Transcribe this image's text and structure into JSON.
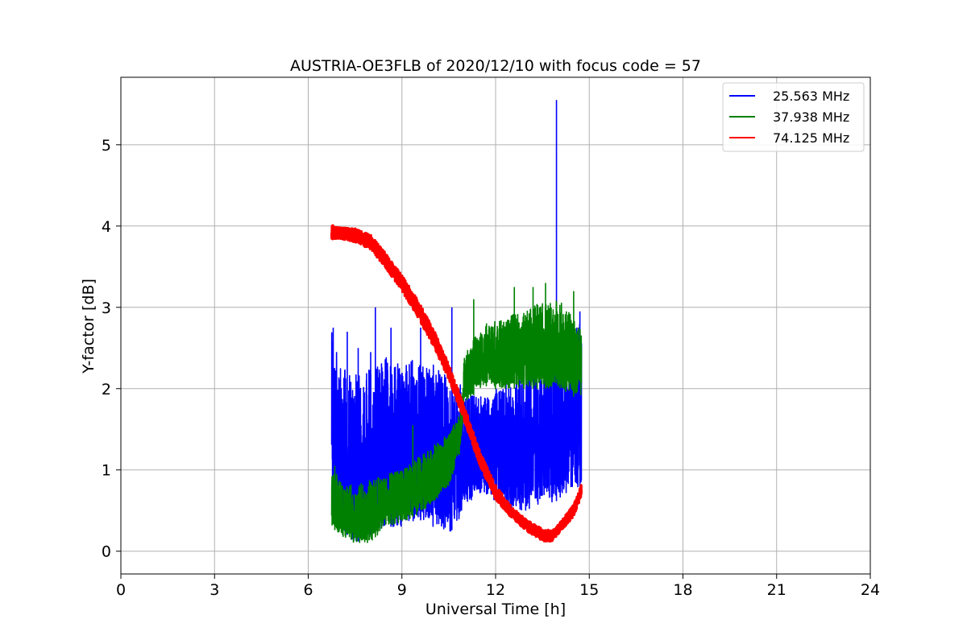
{
  "chart_data": {
    "type": "line",
    "title": "AUSTRIA-OE3FLB of 2020/12/10 with focus code = 57",
    "xlabel": "Universal Time [h]",
    "ylabel": "Y-factor [dB]",
    "xlim": [
      0,
      24
    ],
    "ylim": [
      -0.28,
      5.83
    ],
    "xticks": [
      0,
      3,
      6,
      9,
      12,
      15,
      18,
      21,
      24
    ],
    "yticks": [
      0,
      1,
      2,
      3,
      4,
      5
    ],
    "grid": true,
    "legend_position": "top-right",
    "series": [
      {
        "name": "25.563 MHz",
        "color": "#0000ff",
        "x": [
          6.75,
          7.0,
          7.5,
          8.0,
          8.5,
          9.0,
          9.5,
          10.0,
          10.5,
          11.0,
          11.5,
          12.0,
          12.5,
          13.0,
          13.5,
          13.9,
          14.2,
          14.75
        ],
        "low": [
          0.7,
          0.3,
          0.1,
          0.2,
          0.3,
          0.3,
          0.4,
          0.3,
          0.2,
          0.5,
          0.7,
          0.6,
          0.5,
          0.5,
          0.6,
          0.6,
          0.7,
          0.8
        ],
        "high": [
          2.7,
          2.3,
          2.2,
          2.3,
          2.4,
          2.3,
          2.4,
          2.3,
          2.2,
          2.0,
          1.9,
          2.0,
          2.1,
          2.2,
          2.3,
          2.4,
          2.4,
          2.9
        ],
        "spikes": [
          [
            6.8,
            2.75
          ],
          [
            7.25,
            2.7
          ],
          [
            7.6,
            2.5
          ],
          [
            8.0,
            2.45
          ],
          [
            8.15,
            3.0
          ],
          [
            8.65,
            2.75
          ],
          [
            9.6,
            2.75
          ],
          [
            10.6,
            3.0
          ],
          [
            13.95,
            5.55
          ],
          [
            14.7,
            2.95
          ]
        ]
      },
      {
        "name": "37.938 MHz",
        "color": "#008000",
        "x": [
          6.75,
          7.0,
          7.5,
          8.0,
          8.5,
          9.0,
          9.5,
          10.0,
          10.5,
          10.85,
          11.0,
          11.5,
          12.0,
          12.5,
          13.0,
          13.5,
          14.0,
          14.5,
          14.75
        ],
        "low": [
          0.3,
          0.2,
          0.1,
          0.1,
          0.3,
          0.35,
          0.45,
          0.6,
          0.8,
          1.2,
          1.8,
          2.0,
          2.0,
          2.0,
          2.0,
          2.0,
          2.0,
          1.9,
          1.9
        ],
        "high": [
          1.1,
          0.9,
          0.8,
          0.9,
          0.95,
          1.0,
          1.15,
          1.3,
          1.45,
          1.7,
          2.4,
          2.8,
          2.85,
          2.9,
          3.0,
          3.1,
          3.1,
          2.9,
          2.7
        ],
        "spikes": [
          [
            6.85,
            1.05
          ],
          [
            9.35,
            1.55
          ],
          [
            11.3,
            3.1
          ],
          [
            12.6,
            3.25
          ],
          [
            13.2,
            3.25
          ],
          [
            13.6,
            3.3
          ],
          [
            14.5,
            3.2
          ]
        ]
      },
      {
        "name": "74.125 MHz",
        "color": "#ff0000",
        "x": [
          6.75,
          7.0,
          7.5,
          8.0,
          8.5,
          9.0,
          9.5,
          10.0,
          10.5,
          11.0,
          11.5,
          12.0,
          12.5,
          13.0,
          13.5,
          13.8,
          14.0,
          14.5,
          14.75
        ],
        "low": [
          3.75,
          3.78,
          3.72,
          3.62,
          3.38,
          3.1,
          2.78,
          2.42,
          2.02,
          1.5,
          0.95,
          0.55,
          0.34,
          0.18,
          0.05,
          0.05,
          0.15,
          0.35,
          0.6
        ],
        "high": [
          4.1,
          4.05,
          4.05,
          3.98,
          3.75,
          3.5,
          3.2,
          2.85,
          2.4,
          1.88,
          1.32,
          0.9,
          0.62,
          0.45,
          0.35,
          0.32,
          0.38,
          0.65,
          0.9
        ]
      }
    ]
  }
}
